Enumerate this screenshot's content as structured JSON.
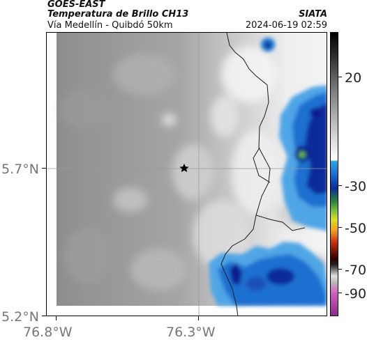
{
  "header": {
    "satellite": "GOES-EAST",
    "product": "Temperatura de Brillo CH13",
    "region": "Vía Medellín - Quibdó 50km",
    "source": "SIATA",
    "datetime": "2024-06-19 02:59"
  },
  "axes": {
    "lat_ticks": [
      "5.7°N",
      "5.2°N"
    ],
    "lon_ticks": [
      "76.8°W",
      "76.3°W"
    ]
  },
  "colorbar": {
    "ticks": [
      "20",
      "-30",
      "-50",
      "-70",
      "-90"
    ]
  },
  "map": {
    "marker_icon": "star-icon",
    "colors": {
      "cold_cloud": "#1a6fd0",
      "deep_convection": "#0a1f8f",
      "core": "#2e8b3a",
      "clear_warm": "#8a8a8a",
      "cloud_gray": "#e8e8e8"
    }
  }
}
